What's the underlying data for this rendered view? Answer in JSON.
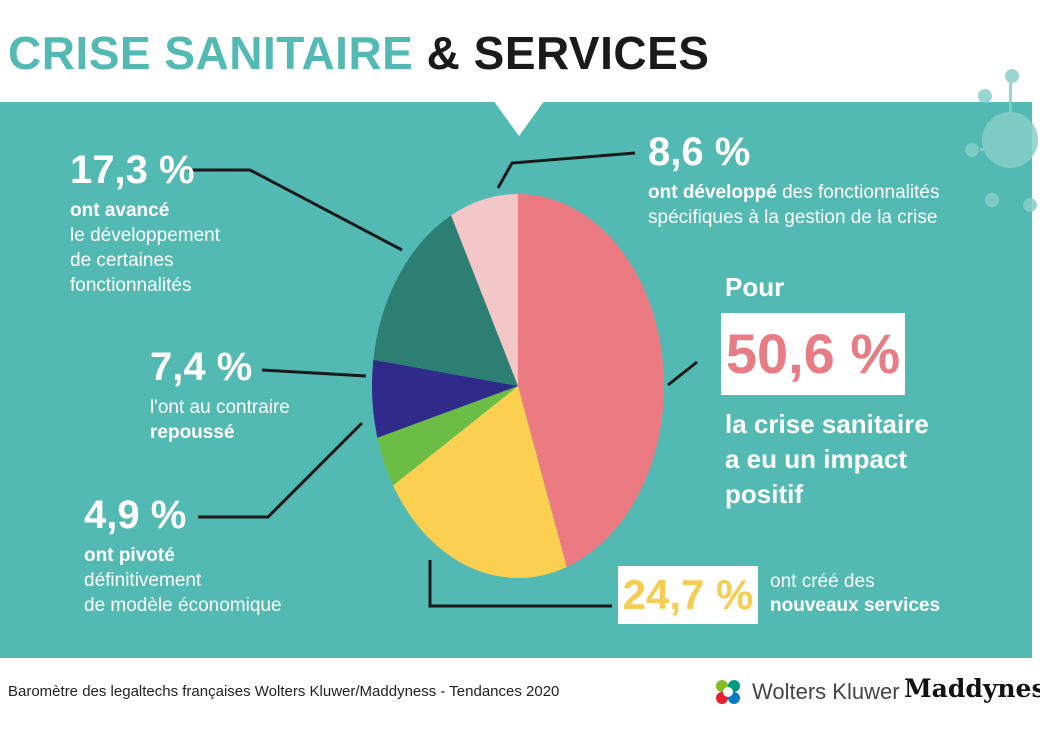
{
  "title": {
    "part1": "CRISE SANITAIRE",
    "part2": "& SERVICES"
  },
  "chart_data": {
    "type": "pie",
    "title": "CRISE SANITAIRE & SERVICES",
    "slices": [
      {
        "value": 50.6,
        "label": "50,6 %",
        "color": "#ec7a83"
      },
      {
        "value": 24.7,
        "label": "24,7 %",
        "color": "#fbd050"
      },
      {
        "value": 4.9,
        "label": "4,9 %",
        "color": "#6cbd45"
      },
      {
        "value": 7.4,
        "label": "7,4 %",
        "color": "#302a8a"
      },
      {
        "value": 17.3,
        "label": "17,3 %",
        "color": "#2e7f73"
      },
      {
        "value": 8.6,
        "label": "8,6 %",
        "color": "#f3c6c8"
      }
    ]
  },
  "annotations": {
    "s173": {
      "pct": "17,3 %",
      "bold": "ont avancé",
      "rest1": "le développement",
      "rest2": "de certaines",
      "rest3": "fonctionnalités"
    },
    "s74": {
      "pct": "7,4 %",
      "line1": "l'ont au contraire",
      "bold": "repoussé"
    },
    "s49": {
      "pct": "4,9 %",
      "bold": "ont pivoté",
      "rest1": "définitivement",
      "rest2": "de modèle économique"
    },
    "s86": {
      "pct": "8,6 %",
      "bold": "ont développé",
      "rest1": " des fonctionnalités",
      "rest2": "spécifiques à la gestion de la crise"
    },
    "s506": {
      "pour": "Pour",
      "pct": "50,6 %",
      "line1": "la crise sanitaire",
      "line2": "a eu un impact",
      "line3": "positif"
    },
    "s247": {
      "pct": "24,7 %",
      "rest": "ont créé",
      "rest_tail": " des",
      "bold": "nouveaux services"
    }
  },
  "footer": {
    "source": "Baromètre des legaltechs françaises Wolters Kluwer/Maddyness - Tendances 2020"
  },
  "logos": {
    "wolters": "Wolters Kluwer",
    "maddyness": "Maddyness"
  },
  "colors": {
    "teal": "#53bab3",
    "white": "#ffffff",
    "pink": "#ec7a83",
    "yellow": "#fbd050"
  }
}
